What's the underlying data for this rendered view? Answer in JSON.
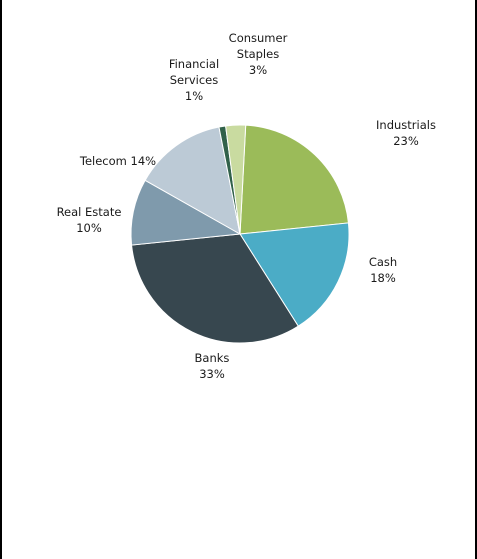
{
  "chart_data": {
    "type": "pie",
    "title": "",
    "start_angle_deg": 3,
    "direction": "clockwise",
    "slices": [
      {
        "name": "Industrials",
        "value": 23,
        "pct_label": "23%",
        "color": "#9BBB59"
      },
      {
        "name": "Cash",
        "value": 18,
        "pct_label": "18%",
        "color": "#4BACC6"
      },
      {
        "name": "Banks",
        "value": 33,
        "pct_label": "33%",
        "color": "#37474F"
      },
      {
        "name": "Real Estate",
        "value": 10,
        "pct_label": "10%",
        "color": "#7F9AAC"
      },
      {
        "name": "Telecom",
        "value": 14,
        "pct_label": "14%",
        "color": "#BCCAD6"
      },
      {
        "name": "Financial Services",
        "value": 1,
        "pct_label": "1%",
        "color": "#31614A"
      },
      {
        "name": "Consumer Staples",
        "value": 3,
        "pct_label": "3%",
        "color": "#C9DBA0"
      }
    ],
    "labels": [
      {
        "lines": [
          "Industrials",
          "23%"
        ]
      },
      {
        "lines": [
          "Cash",
          "18%"
        ]
      },
      {
        "lines": [
          "Banks",
          "33%"
        ]
      },
      {
        "lines": [
          "Real Estate",
          "10%"
        ]
      },
      {
        "lines": [
          "Telecom  14%"
        ]
      },
      {
        "lines": [
          "Financial",
          "Services",
          "1%"
        ]
      },
      {
        "lines": [
          "Consumer",
          "Staples",
          "3%"
        ]
      }
    ]
  }
}
